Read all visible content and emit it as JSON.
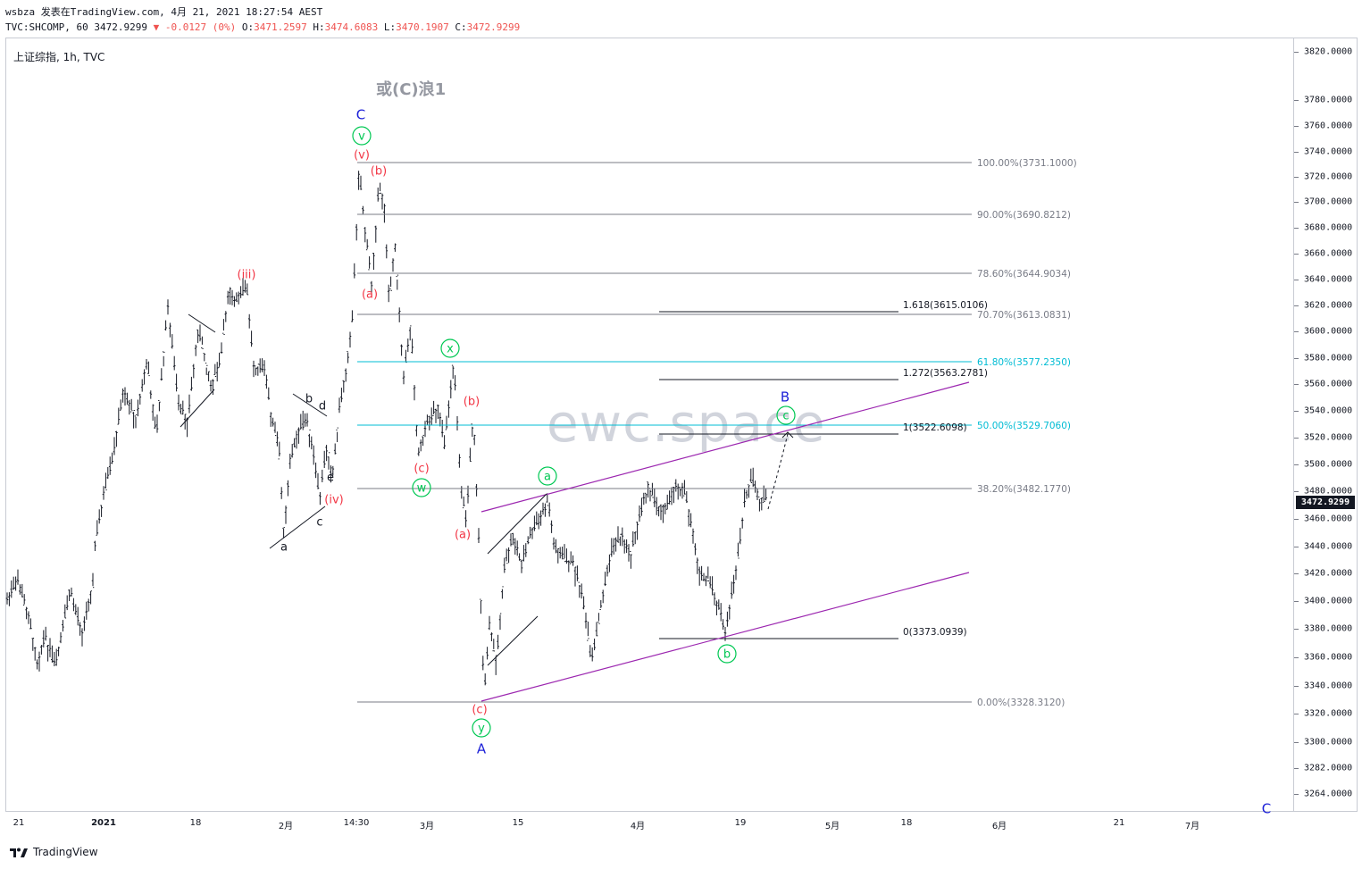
{
  "header": {
    "line1": "wsbza 发表在TradingView.com, 4月 21, 2021 18:27:54 AEST",
    "line2_prefix": "TVC:SHCOMP, 60 3472.9299 ",
    "line2_change": "▼ -0.0127 (0%)",
    "line2_o_label": " O:",
    "line2_o": "3471.2597",
    "line2_h_label": " H:",
    "line2_h": "3474.6083",
    "line2_l_label": " L:",
    "line2_l": "3470.1907",
    "line2_c_label": " C:",
    "line2_c": "3472.9299"
  },
  "symbol_label": "上证综指, 1h, TVC",
  "title_note": "或(C)浪1",
  "watermark": "ewc.space",
  "last_price": "3472.9299",
  "footer_text": "TradingView",
  "colors": {
    "candle": "#131722",
    "fib": "#787b86",
    "fib_teal": "#00bcd4",
    "channel": "#9c27b0",
    "wave_red": "#f23645",
    "wave_green": "#00c853",
    "wave_blue": "#1e22d8",
    "wave_black": "#131722"
  },
  "price_axis": [
    "3820.0000",
    "3780.0000",
    "3760.0000",
    "3740.0000",
    "3720.0000",
    "3700.0000",
    "3680.0000",
    "3660.0000",
    "3640.0000",
    "3620.0000",
    "3600.0000",
    "3580.0000",
    "3560.0000",
    "3540.0000",
    "3520.0000",
    "3500.0000",
    "3480.0000",
    "3460.0000",
    "3440.0000",
    "3420.0000",
    "3400.0000",
    "3380.0000",
    "3360.0000",
    "3340.0000",
    "3320.0000",
    "3300.0000",
    "3282.0000",
    "3264.0000"
  ],
  "time_axis": [
    {
      "label": "21",
      "bold": false
    },
    {
      "label": "2021",
      "bold": true
    },
    {
      "label": "18",
      "bold": false
    },
    {
      "label": "2月",
      "bold": false
    },
    {
      "label": "14:30",
      "bold": false
    },
    {
      "label": "3月",
      "bold": false
    },
    {
      "label": "15",
      "bold": false
    },
    {
      "label": "4月",
      "bold": false
    },
    {
      "label": "19",
      "bold": false
    },
    {
      "label": "5月",
      "bold": false
    },
    {
      "label": "18",
      "bold": false
    },
    {
      "label": "6月",
      "bold": false
    },
    {
      "label": "21",
      "bold": false
    },
    {
      "label": "7月",
      "bold": false
    }
  ],
  "fib_levels": [
    {
      "label": "100.00%(3731.1000)",
      "teal": false
    },
    {
      "label": "90.00%(3690.8212)",
      "teal": false
    },
    {
      "label": "78.60%(3644.9034)",
      "teal": false
    },
    {
      "label": "70.70%(3613.0831)",
      "teal": false
    },
    {
      "label": "61.80%(3577.2350)",
      "teal": true
    },
    {
      "label": "50.00%(3529.7060)",
      "teal": true
    },
    {
      "label": "38.20%(3482.1770)",
      "teal": false
    },
    {
      "label": "0.00%(3328.3120)",
      "teal": false
    }
  ],
  "ext_levels": [
    {
      "label": "1.618(3615.0106)"
    },
    {
      "label": "1.272(3563.2781)"
    },
    {
      "label": "1(3522.6098)"
    },
    {
      "label": "0(3373.0939)"
    }
  ],
  "wave_labels": [
    {
      "text": "C",
      "style": "blue"
    },
    {
      "text": "v",
      "style": "green-circle"
    },
    {
      "text": "(v)",
      "style": "red"
    },
    {
      "text": "(b)",
      "style": "red"
    },
    {
      "text": "(iii)",
      "style": "red"
    },
    {
      "text": "(a)",
      "style": "red"
    },
    {
      "text": "x",
      "style": "green-circle"
    },
    {
      "text": "(b)",
      "style": "red"
    },
    {
      "text": "(c)",
      "style": "red"
    },
    {
      "text": "w",
      "style": "green-circle"
    },
    {
      "text": "b",
      "style": "black"
    },
    {
      "text": "d",
      "style": "black"
    },
    {
      "text": "e",
      "style": "black"
    },
    {
      "text": "(iv)",
      "style": "red"
    },
    {
      "text": "c",
      "style": "black"
    },
    {
      "text": "a",
      "style": "black"
    },
    {
      "text": "(a)",
      "style": "red"
    },
    {
      "text": "a",
      "style": "green-circle"
    },
    {
      "text": "B",
      "style": "blue"
    },
    {
      "text": "c",
      "style": "green-circle"
    },
    {
      "text": "b",
      "style": "green-circle"
    },
    {
      "text": "(c)",
      "style": "red"
    },
    {
      "text": "y",
      "style": "green-circle"
    },
    {
      "text": "A",
      "style": "blue"
    },
    {
      "text": "C",
      "style": "blue"
    }
  ]
}
